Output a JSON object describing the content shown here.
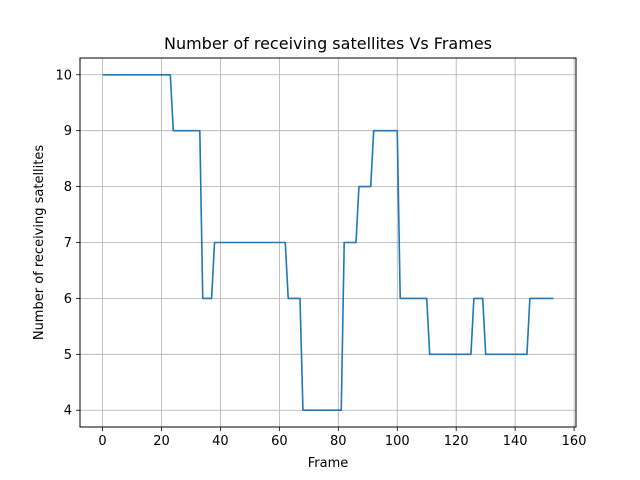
{
  "chart_data": {
    "type": "line",
    "title": "Number of receiving satellites Vs Frames",
    "xlabel": "Frame",
    "ylabel": "Number of receiving satellites",
    "xlim": [
      -7.65,
      160.65
    ],
    "ylim": [
      3.7,
      10.3
    ],
    "xticks": [
      0,
      20,
      40,
      60,
      80,
      100,
      120,
      140,
      160
    ],
    "yticks": [
      4,
      5,
      6,
      7,
      8,
      9,
      10
    ],
    "grid": true,
    "line_color": "#1f77b4",
    "series": [
      {
        "x": [
          0,
          23,
          24,
          33,
          34,
          37,
          38,
          62,
          63,
          67,
          68,
          81,
          82,
          86,
          87,
          91,
          92,
          100,
          101,
          110,
          111,
          125,
          126,
          129,
          130,
          144,
          145,
          153
        ],
        "y": [
          10,
          10,
          9,
          9,
          6,
          6,
          7,
          7,
          6,
          6,
          4,
          4,
          7,
          7,
          8,
          8,
          9,
          9,
          6,
          6,
          5,
          5,
          6,
          6,
          5,
          5,
          6,
          6
        ]
      }
    ]
  }
}
